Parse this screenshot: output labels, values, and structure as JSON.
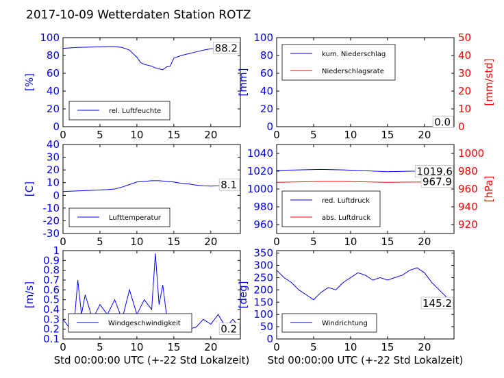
{
  "page_title": "2017-10-09 Wetterdaten Station ROTZ",
  "chart_data": [
    {
      "id": "humidity",
      "type": "line",
      "x_range": [
        0,
        24
      ],
      "x_ticks": [
        0,
        5,
        10,
        15,
        20
      ],
      "ylabel": "[%]",
      "ylim": [
        0,
        100
      ],
      "y_ticks": [
        0,
        20,
        40,
        60,
        80,
        100
      ],
      "legend_position": "bottom-left",
      "value_label": "88.2",
      "series": [
        {
          "name": "rel. Luftfeuchte",
          "color": "#0000ff",
          "axis": "left",
          "x": [
            0,
            2,
            4,
            6,
            7,
            8,
            9,
            9.5,
            10,
            10.5,
            11,
            11.5,
            12,
            12.5,
            13,
            13.5,
            14,
            14.5,
            15,
            16,
            17,
            18,
            19,
            20,
            21,
            22,
            24
          ],
          "y": [
            88,
            89,
            89.5,
            90,
            90,
            89,
            86,
            82,
            78,
            72,
            70,
            69,
            68,
            66,
            65,
            64,
            67,
            68,
            77,
            80,
            82,
            84,
            86,
            87.5,
            88,
            88.2,
            88.2
          ]
        }
      ]
    },
    {
      "id": "precipitation",
      "type": "line",
      "x_range": [
        0,
        24
      ],
      "x_ticks": [
        0,
        5,
        10,
        15,
        20
      ],
      "ylabel": "[mm]",
      "ylim": [
        0,
        100
      ],
      "y_ticks": [
        0,
        20,
        40,
        60,
        80,
        100
      ],
      "ylabel_right": "[mm/std]",
      "ylim_right": [
        0,
        50
      ],
      "y_ticks_right": [
        0,
        10,
        20,
        30,
        40,
        50
      ],
      "legend_position": "top-left",
      "value_label": "0.0",
      "value_label_right": "0.0",
      "series": [
        {
          "name": "kum. Niederschlag",
          "color": "#0000ff",
          "axis": "left",
          "x": [
            0,
            24
          ],
          "y": [
            0,
            0
          ]
        },
        {
          "name": "Niederschlagsrate",
          "color": "#ff0000",
          "axis": "right",
          "x": [
            0,
            24
          ],
          "y": [
            0,
            0
          ]
        }
      ]
    },
    {
      "id": "temperature",
      "type": "line",
      "x_range": [
        0,
        24
      ],
      "x_ticks": [
        0,
        5,
        10,
        15,
        20
      ],
      "ylabel": "[C]",
      "ylim": [
        -30,
        40
      ],
      "y_ticks": [
        -30,
        -20,
        -10,
        0,
        10,
        20,
        30,
        40
      ],
      "legend_position": "bottom-left",
      "value_label": "8.1",
      "series": [
        {
          "name": "Lufttemperatur",
          "color": "#0000ff",
          "axis": "left",
          "x": [
            0,
            2,
            4,
            6,
            7,
            8,
            9,
            10,
            11,
            12,
            13,
            14,
            15,
            16,
            17,
            18,
            19,
            20,
            21,
            22,
            24
          ],
          "y": [
            3,
            3.5,
            4,
            4.5,
            5,
            6.5,
            8.5,
            10.5,
            11,
            11.5,
            11.5,
            11,
            10.5,
            9.5,
            9,
            8,
            7.5,
            7.3,
            7.5,
            7.8,
            8.1
          ]
        }
      ]
    },
    {
      "id": "pressure",
      "type": "line",
      "x_range": [
        0,
        24
      ],
      "x_ticks": [
        0,
        5,
        10,
        15,
        20
      ],
      "ylim": [
        950,
        1050
      ],
      "y_ticks": [
        960,
        980,
        1000,
        1020,
        1040
      ],
      "ylabel_right": "[hPa]",
      "ylim_right": [
        910,
        1010
      ],
      "y_ticks_right": [
        920,
        940,
        960,
        980,
        1000
      ],
      "legend_position": "bottom-left",
      "value_label": "1019.6",
      "value_label_right": "967.9",
      "series": [
        {
          "name": "red. Luftdruck",
          "color": "#0000ff",
          "axis": "left",
          "x": [
            0,
            3,
            6,
            9,
            12,
            15,
            18,
            21,
            24
          ],
          "y": [
            1021,
            1021.5,
            1022,
            1021.5,
            1020.5,
            1019.5,
            1020,
            1020,
            1019.6
          ]
        },
        {
          "name": "abs. Luftdruck",
          "color": "#ff0000",
          "axis": "right",
          "x": [
            0,
            3,
            6,
            9,
            12,
            15,
            18,
            21,
            24
          ],
          "y": [
            967.5,
            968,
            968.5,
            968.5,
            968,
            967.5,
            967.8,
            968,
            967.9
          ]
        }
      ]
    },
    {
      "id": "wind-speed",
      "type": "line",
      "x_range": [
        0,
        24
      ],
      "x_ticks": [
        0,
        5,
        10,
        15,
        20
      ],
      "ylabel": "[m/s]",
      "ylim": [
        0.1,
        1.0
      ],
      "y_ticks": [
        0.1,
        0.2,
        0.3,
        0.4,
        0.5,
        0.6,
        0.7,
        0.8,
        0.9,
        1.0
      ],
      "xlabel": "Std 00:00:00 UTC (+-22 Std Lokalzeit)",
      "legend_position": "bottom-left",
      "value_label": "0.2",
      "series": [
        {
          "name": "Windgeschwindigkeit",
          "color": "#0000ff",
          "axis": "left",
          "x": [
            0,
            1,
            1.5,
            2,
            2.5,
            3,
            4,
            5,
            6,
            7,
            8,
            9,
            10,
            11,
            12,
            12.5,
            13,
            13.5,
            14,
            15,
            16,
            17,
            18,
            19,
            20,
            21,
            22,
            23,
            24
          ],
          "y": [
            0.3,
            0.2,
            0.25,
            0.7,
            0.35,
            0.55,
            0.3,
            0.45,
            0.35,
            0.5,
            0.3,
            0.6,
            0.35,
            0.5,
            0.4,
            0.97,
            0.45,
            0.65,
            0.35,
            0.25,
            0.18,
            0.2,
            0.22,
            0.3,
            0.25,
            0.35,
            0.22,
            0.3,
            0.2
          ]
        }
      ]
    },
    {
      "id": "wind-direction",
      "type": "line",
      "x_range": [
        0,
        24
      ],
      "x_ticks": [
        0,
        5,
        10,
        15,
        20
      ],
      "ylabel": "[deg]",
      "ylim": [
        0,
        360
      ],
      "y_ticks": [
        0,
        50,
        100,
        150,
        200,
        250,
        300,
        350
      ],
      "xlabel": "Std 00:00:00 UTC (+-22 Std Lokalzeit)",
      "legend_position": "bottom-left",
      "value_label": "145.2",
      "series": [
        {
          "name": "Windrichtung",
          "color": "#0000ff",
          "axis": "left",
          "x": [
            0,
            1,
            2,
            3,
            4,
            5,
            6,
            7,
            8,
            9,
            10,
            11,
            12,
            13,
            14,
            15,
            16,
            17,
            18,
            19,
            20,
            21,
            22,
            23,
            24
          ],
          "y": [
            280,
            250,
            230,
            200,
            180,
            160,
            190,
            210,
            200,
            230,
            250,
            270,
            260,
            240,
            250,
            240,
            250,
            260,
            280,
            290,
            270,
            230,
            200,
            170,
            145
          ]
        }
      ]
    }
  ]
}
